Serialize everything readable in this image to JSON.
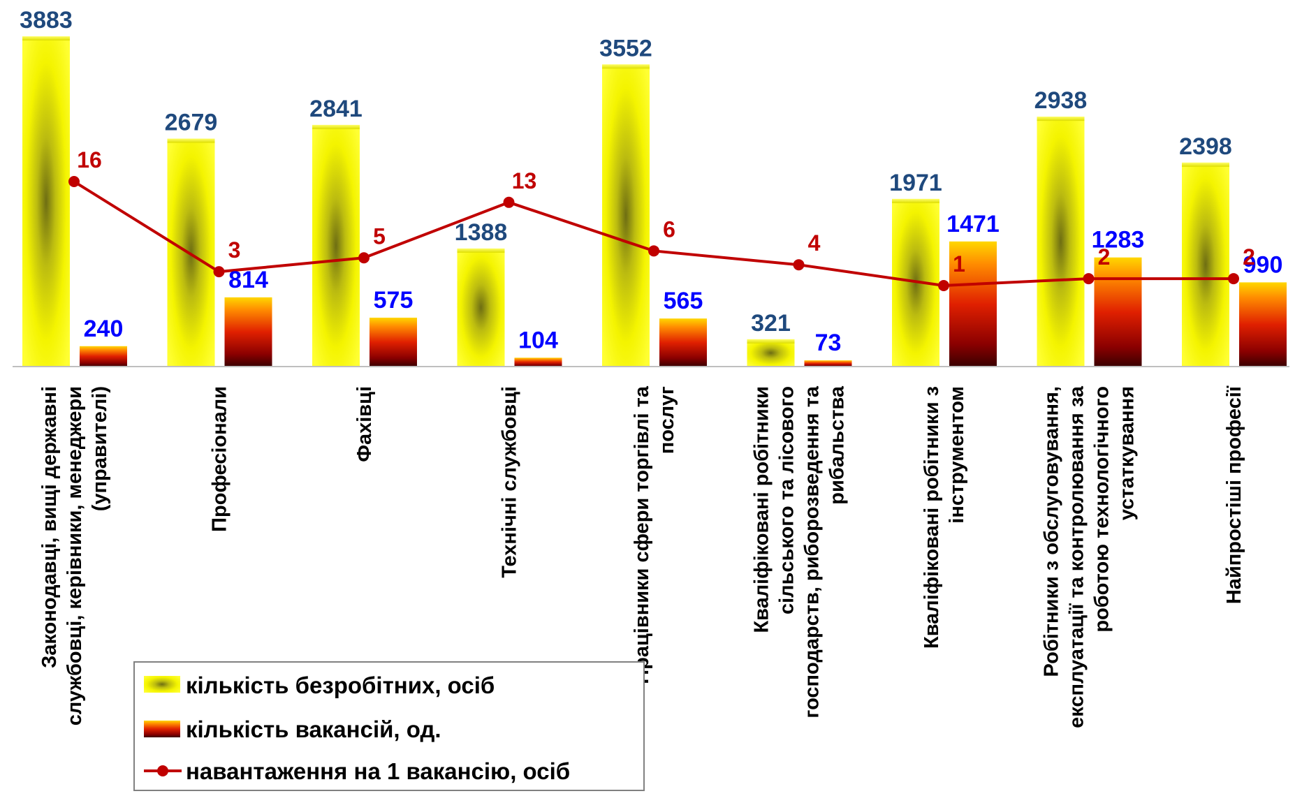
{
  "chart_data": {
    "type": "bar",
    "categories": [
      [
        "Законодавці, вищі державні",
        "службовці, керівники, менеджери",
        "(управителі)"
      ],
      [
        "Професіонали"
      ],
      [
        "Фахівці"
      ],
      [
        "Технічні службовці"
      ],
      [
        "Працівники сфери торгівлі та",
        "послуг"
      ],
      [
        "Кваліфіковані робітники",
        "сільського та лісового",
        "господарств, риборозведення та",
        "рибальства"
      ],
      [
        "Кваліфіковані робітники з",
        "інструментом"
      ],
      [
        "Робітники з обслуговування,",
        "експлуатації та контролювання за",
        "роботою технологічного",
        "устаткування"
      ],
      [
        "Найпростіші професії"
      ]
    ],
    "series": [
      {
        "name": "кількість безробітних, осіб",
        "kind": "bar",
        "color": "#ffff00",
        "values": [
          3883,
          2679,
          2841,
          1388,
          3552,
          321,
          1971,
          2938,
          2398
        ]
      },
      {
        "name": "кількість вакансій, од.",
        "kind": "bar",
        "color": "#ff4500",
        "values": [
          240,
          814,
          575,
          104,
          565,
          73,
          1471,
          1283,
          990
        ]
      },
      {
        "name": "навантаження на 1 вакансію, осіб",
        "kind": "line",
        "color": "#c00000",
        "values": [
          16,
          3,
          5,
          13,
          6,
          4,
          1,
          2,
          2
        ]
      }
    ],
    "ylim": [
      0,
      4000
    ],
    "line_ylim": [
      0,
      35
    ],
    "grid": false,
    "legend_position": "bottom-left"
  }
}
